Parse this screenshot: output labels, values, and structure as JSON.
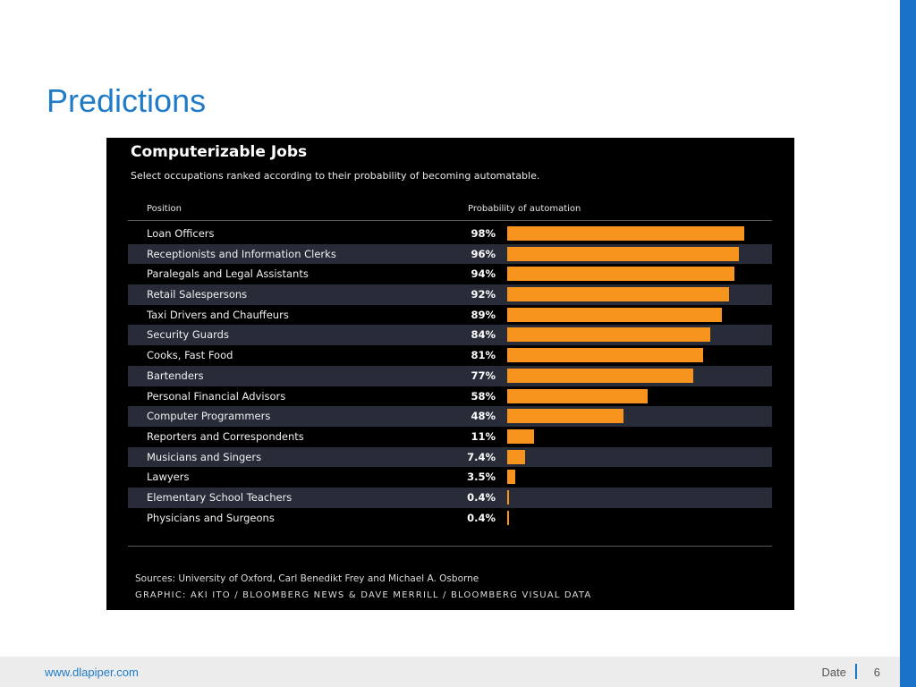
{
  "slide": {
    "title": "Predictions",
    "footer_url": "www.dlapiper.com",
    "footer_date": "Date",
    "page_number": "6"
  },
  "colors": {
    "accent": "#1f7bc8",
    "bar": "#f7941d",
    "panel": "#000000",
    "row_stripe": "#272c38"
  },
  "chart_data": {
    "type": "bar",
    "orientation": "horizontal",
    "title": "Computerizable Jobs",
    "subtitle": "Select occupations ranked according to their probability of becoming automatable.",
    "column_position": "Position",
    "column_probability": "Probability of automation",
    "categories": [
      "Loan Officers",
      "Receptionists and Information Clerks",
      "Paralegals and Legal Assistants",
      "Retail Salespersons",
      "Taxi Drivers and Chauffeurs",
      "Security Guards",
      "Cooks, Fast Food",
      "Bartenders",
      "Personal Financial Advisors",
      "Computer Programmers",
      "Reporters and Correspondents",
      "Musicians and Singers",
      "Lawyers",
      "Elementary School Teachers",
      "Physicians and Surgeons"
    ],
    "values": [
      98,
      96,
      94,
      92,
      89,
      84,
      81,
      77,
      58,
      48,
      11,
      7.4,
      3.5,
      0.4,
      0.4
    ],
    "value_labels": [
      "98%",
      "96%",
      "94%",
      "92%",
      "89%",
      "84%",
      "81%",
      "77%",
      "58%",
      "48%",
      "11%",
      "7.4%",
      "3.5%",
      "0.4%",
      "0.4%"
    ],
    "xlim": [
      0,
      100
    ],
    "source": "Sources: University of Oxford, Carl Benedikt Frey and Michael A. Osborne",
    "credit": "GRAPHIC: AKI ITO / BLOOMBERG NEWS & DAVE MERRILL / BLOOMBERG VISUAL DATA"
  }
}
